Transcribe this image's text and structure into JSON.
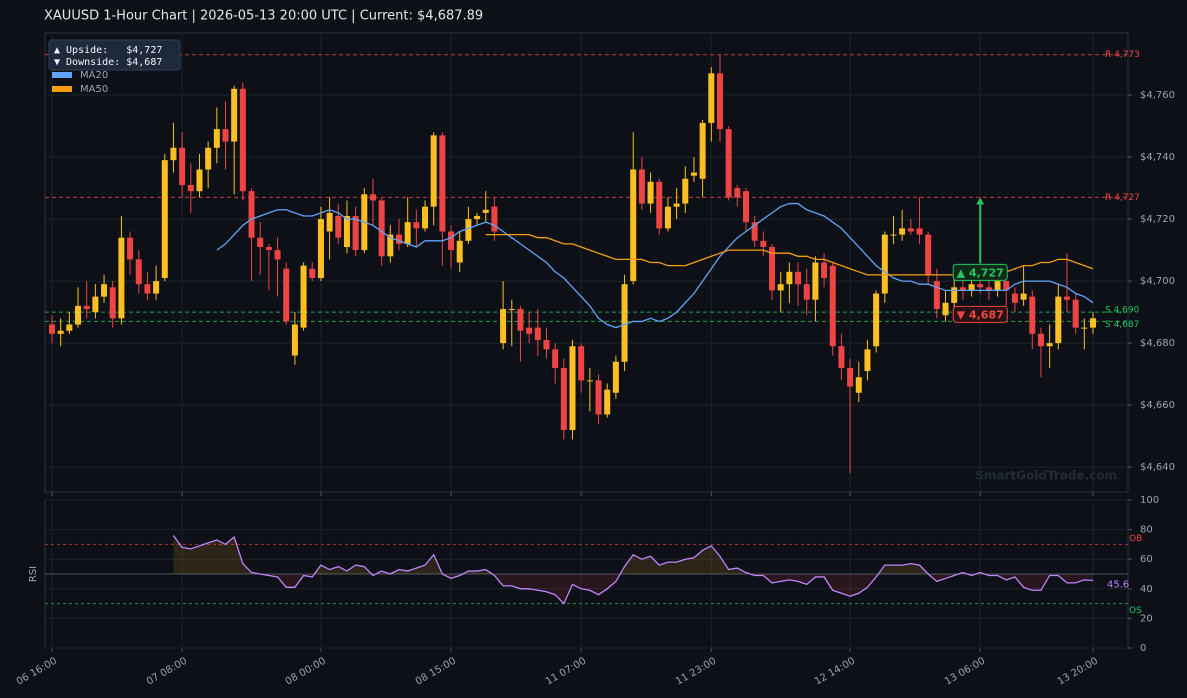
{
  "chart_data": [
    {
      "type": "candlestick",
      "title": "XAUUSD  1-Hour Chart  |  2026-05-13 20:00 UTC  |  Current: $4,687.89",
      "up_color": "#fbbf24",
      "down_color": "#ef4444",
      "open": [
        4686,
        4683,
        4684,
        4686,
        4692,
        4690,
        4695,
        4698,
        4688,
        4714,
        4707,
        4699,
        4696,
        4701,
        4739,
        4743,
        4731,
        4729,
        4736,
        4743,
        4749,
        4745,
        4762,
        4729,
        4714,
        4711,
        4710,
        4704,
        4676,
        4685,
        4704,
        4701,
        4716,
        4721,
        4711,
        4721,
        4710,
        4728,
        4726,
        4708,
        4715,
        4712,
        4719,
        4717,
        4724,
        4747,
        4716,
        4706,
        4713,
        4720,
        4722,
        4724,
        4680,
        4691,
        4691,
        4685,
        4685,
        4681,
        4678,
        4672,
        4652,
        4679,
        4668,
        4668,
        4657,
        4664,
        4674,
        4700,
        4736,
        4725,
        4732,
        4717,
        4724,
        4725,
        4734,
        4733,
        4751,
        4767,
        4749,
        4730,
        4729,
        4719,
        4713,
        4711,
        4697,
        4699,
        4703,
        4699,
        4694,
        4706,
        4705,
        4679,
        4672,
        4664,
        4671,
        4679,
        4696,
        4715,
        4715,
        4717,
        4717,
        4715,
        4700,
        4689,
        4693,
        4698,
        4697,
        4699,
        4698,
        4697,
        4700,
        4696,
        4694,
        4695,
        4683,
        4679,
        4680,
        4695,
        4694,
        4685,
        4685
      ],
      "high": [
        4689,
        4688,
        4690,
        4698,
        4700,
        4699,
        4702,
        4700,
        4721,
        4716,
        4710,
        4703,
        4705,
        4741,
        4751,
        4748,
        4738,
        4741,
        4745,
        4756,
        4758,
        4763,
        4764,
        4730,
        4719,
        4712,
        4714,
        4706,
        4690,
        4706,
        4706,
        4724,
        4727,
        4725,
        4726,
        4724,
        4730,
        4733,
        4727,
        4718,
        4720,
        4727,
        4723,
        4726,
        4748,
        4748,
        4718,
        4716,
        4724,
        4722,
        4729,
        4727,
        4700,
        4694,
        4692,
        4690,
        4691,
        4685,
        4680,
        4675,
        4681,
        4680,
        4672,
        4670,
        4667,
        4676,
        4702,
        4748,
        4740,
        4735,
        4733,
        4727,
        4730,
        4737,
        4740,
        4752,
        4769,
        4773,
        4750,
        4731,
        4730,
        4721,
        4716,
        4712,
        4703,
        4706,
        4706,
        4704,
        4708,
        4709,
        4706,
        4683,
        4675,
        4674,
        4681,
        4697,
        4716,
        4721,
        4723,
        4720,
        4727,
        4716,
        4704,
        4697,
        4703,
        4702,
        4705,
        4703,
        4701,
        4703,
        4701,
        4698,
        4705,
        4697,
        4685,
        4686,
        4699,
        4709,
        4696,
        4688,
        4690
      ],
      "low": [
        4680,
        4679,
        4683,
        4685,
        4688,
        4688,
        4693,
        4685,
        4686,
        4702,
        4696,
        4694,
        4694,
        4700,
        4735,
        4727,
        4722,
        4727,
        4730,
        4738,
        4736,
        4728,
        4726,
        4700,
        4702,
        4697,
        4695,
        4686,
        4673,
        4684,
        4700,
        4700,
        4707,
        4712,
        4709,
        4708,
        4709,
        4718,
        4705,
        4706,
        4710,
        4711,
        4711,
        4716,
        4718,
        4705,
        4704,
        4703,
        4712,
        4718,
        4719,
        4713,
        4678,
        4679,
        4674,
        4680,
        4676,
        4675,
        4667,
        4649,
        4649,
        4664,
        4658,
        4654,
        4656,
        4662,
        4671,
        4699,
        4723,
        4722,
        4715,
        4716,
        4720,
        4722,
        4732,
        4727,
        4745,
        4745,
        4726,
        4724,
        4716,
        4711,
        4708,
        4694,
        4690,
        4693,
        4692,
        4689,
        4687,
        4698,
        4676,
        4668,
        4638,
        4661,
        4668,
        4677,
        4693,
        4712,
        4713,
        4715,
        4712,
        4699,
        4688,
        4687,
        4691,
        4694,
        4695,
        4696,
        4694,
        4695,
        4692,
        4690,
        4692,
        4678,
        4669,
        4672,
        4678,
        4690,
        4683,
        4678,
        4683
      ],
      "close": [
        4683,
        4684,
        4686,
        4692,
        4691,
        4695,
        4699,
        4688,
        4714,
        4707,
        4699,
        4696,
        4700,
        4739,
        4743,
        4731,
        4729,
        4736,
        4743,
        4749,
        4745,
        4762,
        4729,
        4714,
        4711,
        4710,
        4707,
        4687,
        4686,
        4705,
        4701,
        4720,
        4722,
        4714,
        4721,
        4710,
        4728,
        4726,
        4708,
        4715,
        4712,
        4719,
        4717,
        4724,
        4747,
        4716,
        4710,
        4713,
        4720,
        4721,
        4723,
        4716,
        4691,
        4691,
        4684,
        4683,
        4681,
        4678,
        4672,
        4652,
        4679,
        4668,
        4668,
        4657,
        4665,
        4674,
        4699,
        4736,
        4725,
        4732,
        4717,
        4724,
        4725,
        4733,
        4735,
        4751,
        4767,
        4749,
        4727,
        4727,
        4719,
        4713,
        4711,
        4697,
        4699,
        4703,
        4699,
        4694,
        4706,
        4701,
        4679,
        4672,
        4666,
        4669,
        4678,
        4696,
        4715,
        4715,
        4717,
        4716,
        4715,
        4702,
        4691,
        4693,
        4698,
        4697,
        4699,
        4698,
        4697,
        4700,
        4697,
        4693,
        4696,
        4683,
        4679,
        4680,
        4695,
        4694,
        4685,
        4685,
        4688
      ],
      "series": [
        {
          "name": "MA20",
          "color": "#60a5fa",
          "values": [
            null,
            null,
            null,
            null,
            null,
            null,
            null,
            null,
            null,
            null,
            null,
            null,
            null,
            null,
            null,
            null,
            null,
            null,
            null,
            4710,
            4712,
            4715,
            4718,
            4720,
            4721,
            4722,
            4723,
            4723,
            4722,
            4721,
            4721,
            4722,
            4723,
            4722,
            4720,
            4720,
            4719,
            4718,
            4716,
            4714,
            4713,
            4712,
            4711,
            4713,
            4713,
            4713,
            4714,
            4716,
            4717,
            4718,
            4719,
            4718,
            4716,
            4714,
            4712,
            4710,
            4708,
            4706,
            4703,
            4701,
            4698,
            4695,
            4692,
            4688,
            4686,
            4685,
            4686,
            4687,
            4687,
            4688,
            4687,
            4688,
            4690,
            4693,
            4696,
            4700,
            4704,
            4708,
            4711,
            4714,
            4716,
            4718,
            4720,
            4722,
            4724,
            4725,
            4725,
            4723,
            4722,
            4721,
            4719,
            4717,
            4714,
            4711,
            4708,
            4705,
            4703,
            4701,
            4700,
            4700,
            4699,
            4699,
            4698,
            4697,
            4697,
            4697,
            4697,
            4697,
            4697,
            4697,
            4697,
            4699,
            4700,
            4700,
            4700,
            4700,
            4699,
            4698,
            4696,
            4695,
            4693
          ]
        },
        {
          "name": "MA50",
          "color": "#f59e0b",
          "values": [
            null,
            null,
            null,
            null,
            null,
            null,
            null,
            null,
            null,
            null,
            null,
            null,
            null,
            null,
            null,
            null,
            null,
            null,
            null,
            null,
            null,
            null,
            null,
            null,
            null,
            null,
            null,
            null,
            null,
            null,
            null,
            null,
            null,
            null,
            null,
            null,
            null,
            null,
            null,
            null,
            null,
            null,
            null,
            null,
            null,
            null,
            null,
            null,
            null,
            null,
            4715,
            4715,
            4715,
            4715,
            4715,
            4715,
            4714,
            4714,
            4713,
            4712,
            4712,
            4711,
            4710,
            4709,
            4708,
            4707,
            4707,
            4707,
            4707,
            4706,
            4706,
            4705,
            4705,
            4705,
            4706,
            4707,
            4708,
            4709,
            4710,
            4710,
            4710,
            4710,
            4710,
            4709,
            4709,
            4709,
            4708,
            4708,
            4707,
            4707,
            4706,
            4705,
            4704,
            4703,
            4702,
            4702,
            4702,
            4702,
            4702,
            4702,
            4702,
            4702,
            4702,
            4702,
            4702,
            4702,
            4702,
            4702,
            4702,
            4703,
            4703,
            4704,
            4705,
            4705,
            4706,
            4706,
            4707,
            4707,
            4706,
            4705,
            4704
          ]
        }
      ],
      "levels": [
        {
          "value": 4773,
          "label": "R 4,773",
          "color": "#ef4444"
        },
        {
          "value": 4727,
          "label": "R 4,727",
          "color": "#ef4444"
        },
        {
          "value": 4690,
          "label": "S 4,690",
          "color": "#22c55e"
        },
        {
          "value": 4687,
          "label": "S 4,687",
          "color": "#22c55e"
        }
      ],
      "annotations": [
        {
          "value": 4727,
          "label": "▲ 4,727",
          "color": "#22c55e"
        },
        {
          "value": 4687,
          "label": "▼ 4,687",
          "color": "#ef4444"
        }
      ],
      "info": [
        "▲ Upside:   $4,727",
        "▼ Downside: $4,687"
      ],
      "watermark": "SmartGoldTrade.com",
      "ylim": [
        4632,
        4780
      ],
      "yticks": [
        {
          "value": 4640,
          "label": "$4,640"
        },
        {
          "value": 4660,
          "label": "$4,660"
        },
        {
          "value": 4680,
          "label": "$4,680"
        },
        {
          "value": 4700,
          "label": "$4,700"
        },
        {
          "value": 4720,
          "label": "$4,720"
        },
        {
          "value": 4740,
          "label": "$4,740"
        },
        {
          "value": 4760,
          "label": "$4,760"
        }
      ],
      "grid": true
    },
    {
      "type": "line",
      "ylabel": "RSI",
      "color": "#c084fc",
      "categories": [
        "06 16:00",
        null,
        null,
        null,
        null,
        null,
        null,
        null,
        null,
        null,
        null,
        null,
        null,
        null,
        null,
        "07 08:00",
        null,
        null,
        null,
        null,
        null,
        null,
        null,
        null,
        null,
        null,
        null,
        null,
        null,
        null,
        null,
        "08 00:00",
        null,
        null,
        null,
        null,
        null,
        null,
        null,
        null,
        null,
        null,
        null,
        null,
        null,
        null,
        "08 15:00",
        null,
        null,
        null,
        null,
        null,
        null,
        null,
        null,
        null,
        null,
        null,
        null,
        null,
        null,
        "11 07:00",
        null,
        null,
        null,
        null,
        null,
        null,
        null,
        null,
        null,
        null,
        null,
        null,
        null,
        null,
        "11 23:00",
        null,
        null,
        null,
        null,
        null,
        null,
        null,
        null,
        null,
        null,
        null,
        null,
        null,
        null,
        null,
        "12 14:00",
        null,
        null,
        null,
        null,
        null,
        null,
        null,
        null,
        null,
        null,
        null,
        null,
        null,
        null,
        "13 06:00",
        null,
        null,
        null,
        null,
        null,
        null,
        null,
        null,
        null,
        null,
        null,
        null,
        "13 20:00"
      ],
      "values": [
        null,
        null,
        null,
        null,
        null,
        null,
        null,
        null,
        null,
        null,
        null,
        null,
        null,
        null,
        76,
        68,
        67,
        69,
        71,
        73,
        70,
        75,
        57,
        51,
        50,
        49,
        48,
        41,
        41,
        49,
        48,
        56,
        53,
        55,
        52,
        56,
        55,
        49,
        52,
        50,
        53,
        52,
        54,
        56,
        63,
        50,
        47,
        49,
        52,
        52,
        53,
        49,
        42,
        42,
        40,
        40,
        39,
        38,
        36,
        30,
        43,
        40,
        39,
        36,
        40,
        45,
        55,
        63,
        60,
        62,
        56,
        58,
        58,
        60,
        61,
        66,
        69,
        62,
        53,
        54,
        51,
        49,
        49,
        44,
        45,
        46,
        45,
        43,
        48,
        48,
        39,
        37,
        35,
        37,
        41,
        48,
        56,
        56,
        56,
        57,
        56,
        50,
        45,
        47,
        49,
        51,
        49,
        51,
        49,
        49,
        46,
        48,
        41,
        39,
        39,
        49,
        49,
        44,
        44,
        46,
        45.6
      ],
      "hlines": [
        {
          "value": 70,
          "label": "OB",
          "color": "#ef4444"
        },
        {
          "value": 30,
          "label": "OS",
          "color": "#22c55e"
        }
      ],
      "midline": 50,
      "ylim": [
        0,
        100
      ],
      "yticks": [
        0,
        20,
        40,
        60,
        80,
        100
      ],
      "grid": true
    }
  ]
}
